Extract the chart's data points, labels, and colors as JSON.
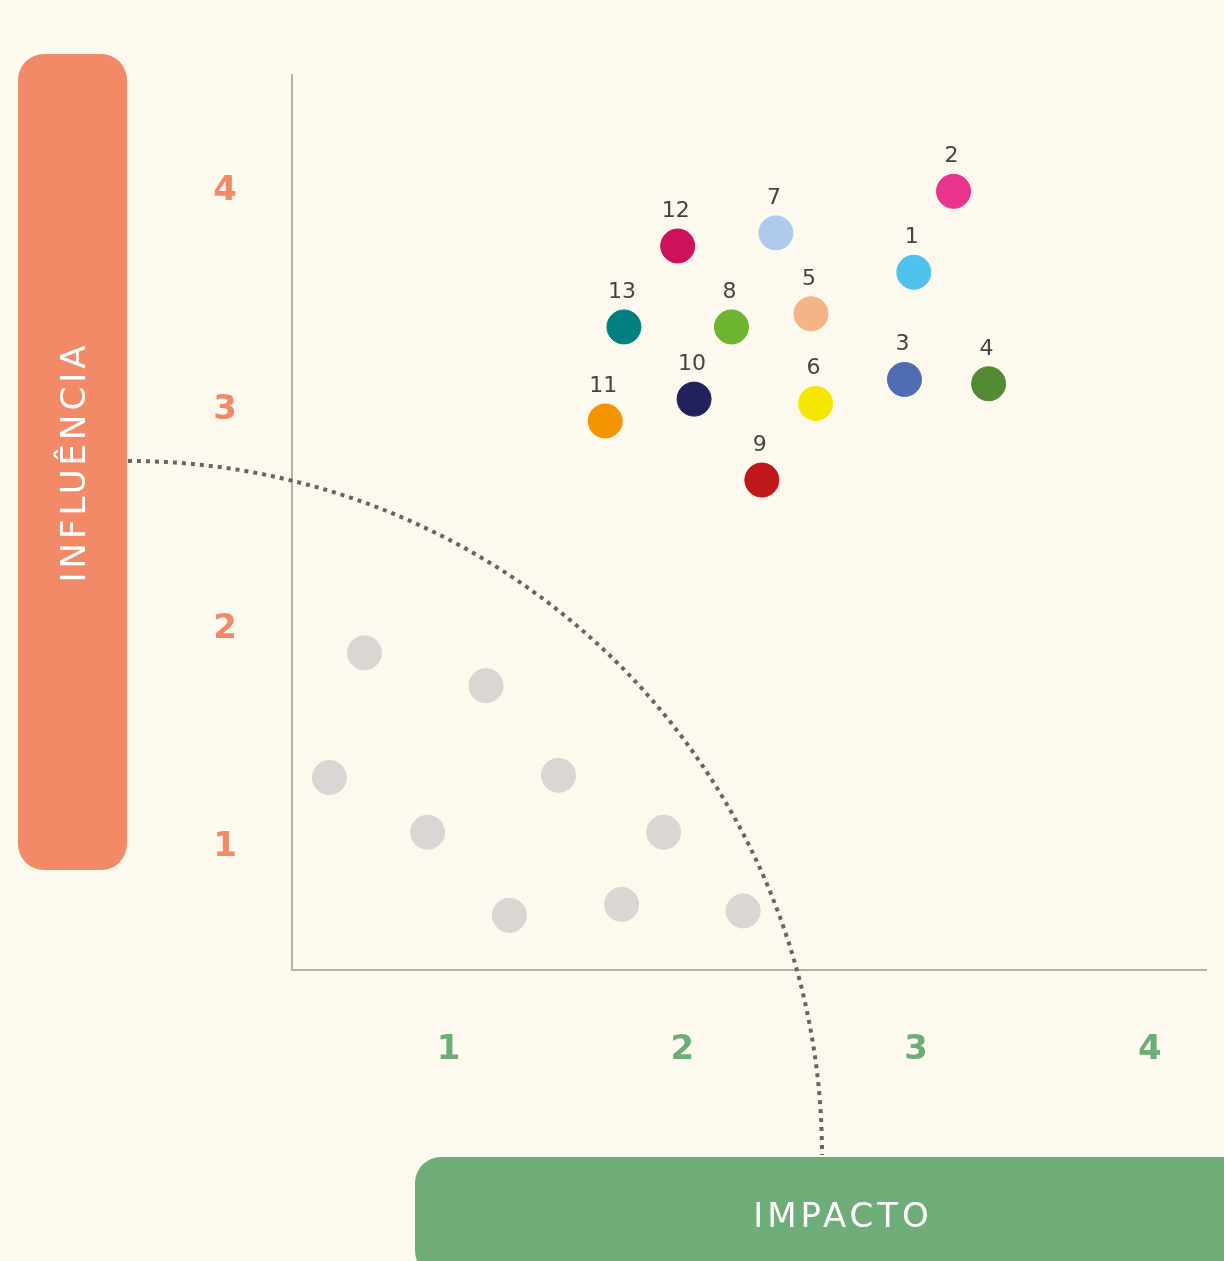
{
  "chart_data": {
    "type": "scatter",
    "xlabel": "IMPACTO",
    "ylabel": "INFLUÊNCIA",
    "xlim": [
      0.33,
      4.24
    ],
    "ylim": [
      0.44,
      4.53
    ],
    "xticks": [
      1,
      2,
      3,
      4
    ],
    "yticks": [
      1,
      2,
      3,
      4
    ],
    "marker": "circle",
    "series": [
      {
        "name": "1",
        "color": "#4fc3ee",
        "x": [
          2.99
        ],
        "values": [
          3.63
        ]
      },
      {
        "name": "2",
        "color": "#e8348c",
        "x": [
          3.16
        ],
        "values": [
          4.0
        ]
      },
      {
        "name": "3",
        "color": "#4e6db3",
        "x": [
          2.95
        ],
        "values": [
          3.14
        ]
      },
      {
        "name": "4",
        "color": "#548a33",
        "x": [
          3.31
        ],
        "values": [
          3.12
        ]
      },
      {
        "name": "5",
        "color": "#f4b486",
        "x": [
          2.55
        ],
        "values": [
          3.44
        ]
      },
      {
        "name": "6",
        "color": "#f7e600",
        "x": [
          2.57
        ],
        "values": [
          3.03
        ]
      },
      {
        "name": "7",
        "color": "#aecbec",
        "x": [
          2.4
        ],
        "values": [
          3.81
        ]
      },
      {
        "name": "8",
        "color": "#6db52e",
        "x": [
          2.21
        ],
        "values": [
          3.38
        ]
      },
      {
        "name": "9",
        "color": "#c0171b",
        "x": [
          2.34
        ],
        "values": [
          2.68
        ]
      },
      {
        "name": "10",
        "color": "#22215c",
        "x": [
          2.05
        ],
        "values": [
          3.05
        ]
      },
      {
        "name": "11",
        "color": "#f39400",
        "x": [
          1.67
        ],
        "values": [
          2.95
        ]
      },
      {
        "name": "12",
        "color": "#cc1259",
        "x": [
          1.98
        ],
        "values": [
          3.75
        ]
      },
      {
        "name": "13",
        "color": "#00807e",
        "x": [
          1.75
        ],
        "values": [
          3.38
        ]
      },
      {
        "color": "#d9d6d3",
        "x": [
          0.64,
          1.16,
          0.49,
          1.47,
          0.91,
          1.92,
          1.26,
          1.74,
          2.26
        ],
        "values": [
          1.89,
          1.74,
          1.32,
          1.33,
          1.07,
          1.07,
          0.69,
          0.74,
          0.71
        ]
      }
    ]
  }
}
